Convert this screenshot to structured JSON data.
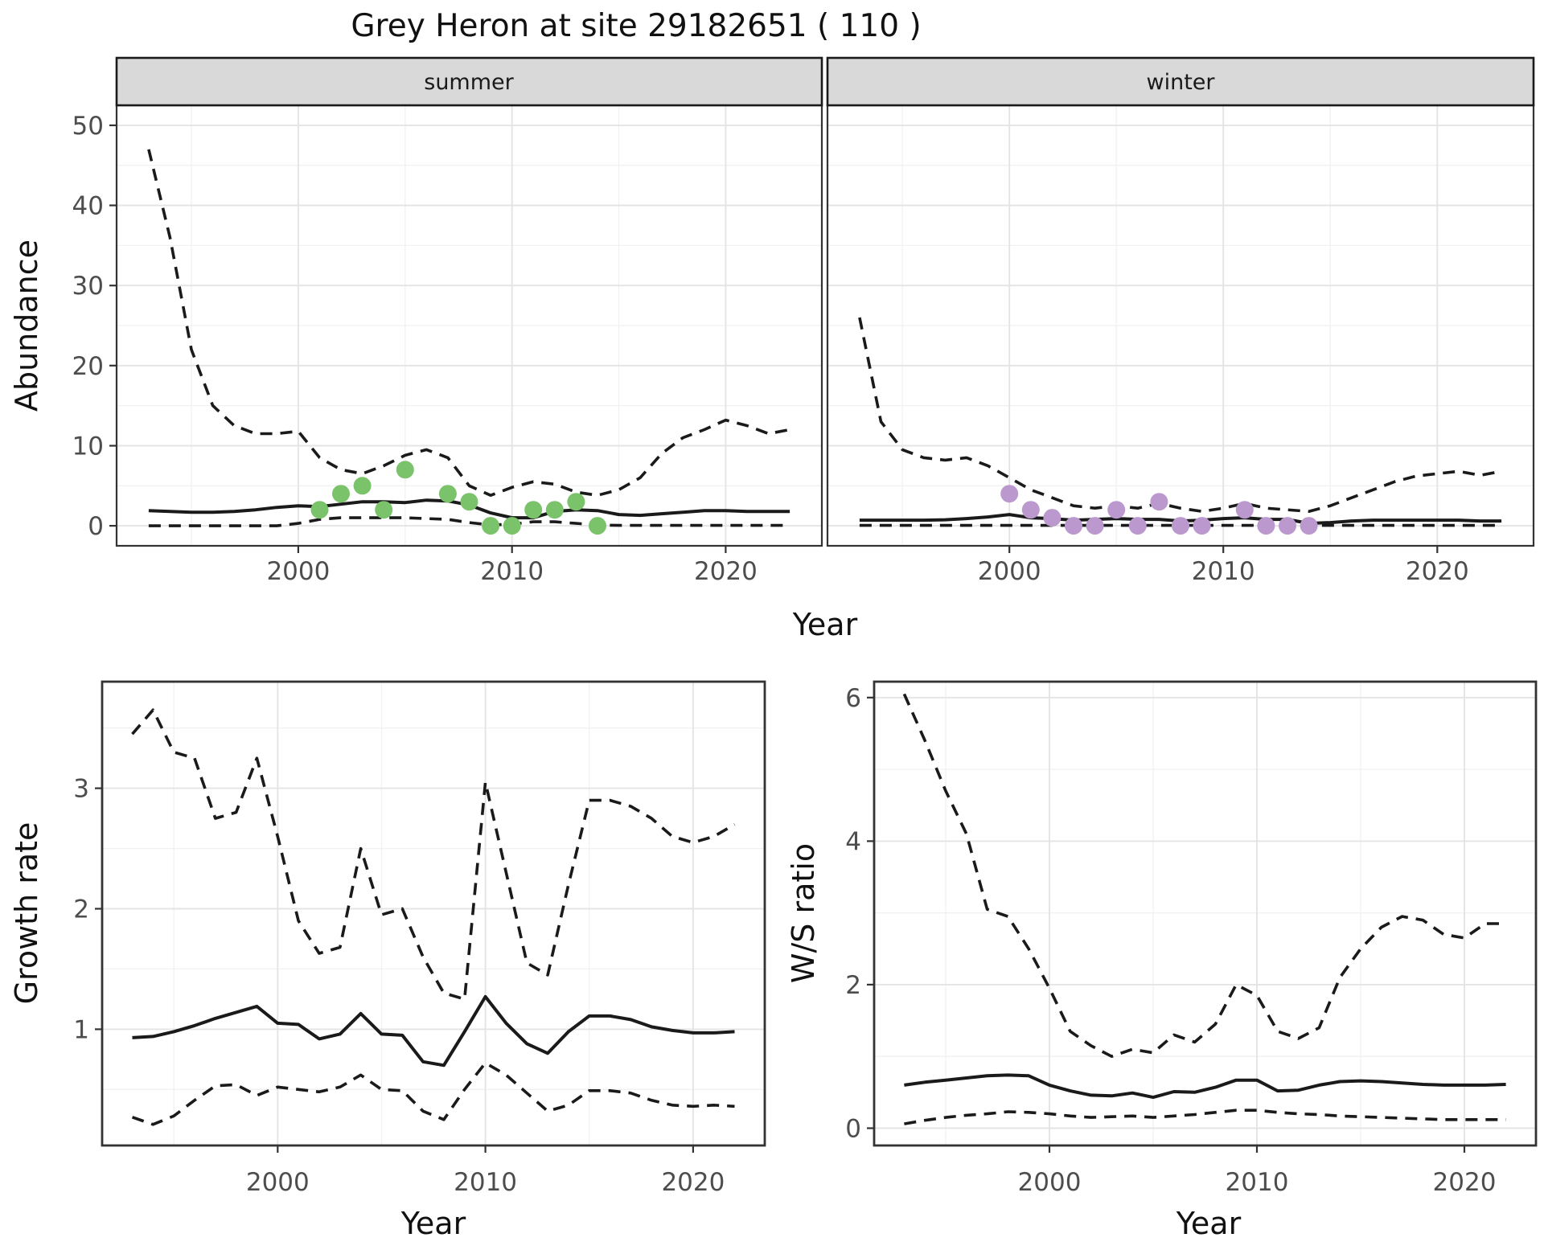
{
  "title": "Grey Heron at site 29182651 ( 110 )",
  "colors": {
    "summer_points": "#7ac36a",
    "winter_points": "#bb99ce",
    "line": "#1a1a1a",
    "strip_background": "#d9d9d9",
    "tick_label": "#4d4d4d",
    "gridline_major": "#e4e4e4",
    "gridline_minor": "#f1f1f1"
  },
  "chart_data": [
    {
      "type": "line",
      "facet": "summer",
      "xlabel": "Year",
      "ylabel": "Abundance",
      "xlim": [
        1991.5,
        2024.5
      ],
      "ylim": [
        -2.5,
        52.5
      ],
      "xticks": [
        2000,
        2010,
        2020
      ],
      "yticks": [
        0,
        10,
        20,
        30,
        40,
        50
      ],
      "x_minor": [
        1995,
        2005,
        2015
      ],
      "y_minor": [
        5,
        15,
        25,
        35,
        45
      ],
      "grid": true,
      "years": [
        1993,
        1994,
        1995,
        1996,
        1997,
        1998,
        1999,
        2000,
        2001,
        2002,
        2003,
        2004,
        2005,
        2006,
        2007,
        2008,
        2009,
        2010,
        2011,
        2012,
        2013,
        2014,
        2015,
        2016,
        2017,
        2018,
        2019,
        2020,
        2021,
        2022,
        2023
      ],
      "upper": [
        47,
        36,
        22,
        15,
        12.5,
        11.5,
        11.5,
        11.8,
        8.5,
        7,
        6.5,
        7.5,
        8.8,
        9.5,
        8.5,
        5,
        3.8,
        4.8,
        5.5,
        5.2,
        4.2,
        3.8,
        4.5,
        6,
        9,
        11,
        12,
        13.2,
        12.5,
        11.5,
        12
      ],
      "median": [
        1.9,
        1.8,
        1.7,
        1.7,
        1.8,
        2.0,
        2.3,
        2.5,
        2.4,
        2.7,
        3.0,
        3.0,
        2.9,
        3.2,
        3.1,
        2.6,
        1.6,
        1.0,
        1.0,
        1.8,
        2.0,
        1.9,
        1.4,
        1.3,
        1.5,
        1.7,
        1.9,
        1.9,
        1.8,
        1.8,
        1.8
      ],
      "lower": [
        0,
        0,
        0,
        0,
        0,
        0,
        0,
        0.3,
        0.8,
        1.0,
        1.0,
        1.0,
        1.0,
        0.9,
        0.8,
        0.4,
        0.1,
        0.2,
        0.5,
        0.5,
        0.3,
        0.1,
        0.05,
        0.05,
        0.05,
        0.05,
        0.05,
        0.05,
        0.05,
        0.05,
        0.05
      ],
      "points": {
        "color": "#7ac36a",
        "years": [
          2001,
          2002,
          2003,
          2004,
          2005,
          2007,
          2008,
          2009,
          2010,
          2011,
          2012,
          2013,
          2014
        ],
        "values": [
          2,
          4,
          5,
          2,
          7,
          4,
          3,
          0,
          0,
          2,
          2,
          3,
          0
        ]
      }
    },
    {
      "type": "line",
      "facet": "winter",
      "xlabel": "Year",
      "ylabel": "Abundance",
      "xlim": [
        1991.5,
        2024.5
      ],
      "ylim": [
        -2.5,
        52.5
      ],
      "xticks": [
        2000,
        2010,
        2020
      ],
      "yticks": [
        0,
        10,
        20,
        30,
        40,
        50
      ],
      "x_minor": [
        1995,
        2005,
        2015
      ],
      "y_minor": [
        5,
        15,
        25,
        35,
        45
      ],
      "grid": true,
      "years": [
        1993,
        1994,
        1995,
        1996,
        1997,
        1998,
        1999,
        2000,
        2001,
        2002,
        2003,
        2004,
        2005,
        2006,
        2007,
        2008,
        2009,
        2010,
        2011,
        2012,
        2013,
        2014,
        2015,
        2016,
        2017,
        2018,
        2019,
        2020,
        2021,
        2022,
        2023
      ],
      "upper": [
        26,
        13,
        9.5,
        8.5,
        8.2,
        8.5,
        7.5,
        6,
        4.5,
        3.5,
        2.5,
        2.2,
        2.5,
        2.2,
        2.8,
        2.2,
        1.8,
        2.2,
        2.8,
        2.2,
        2.0,
        1.8,
        2.5,
        3.5,
        4.5,
        5.5,
        6.2,
        6.5,
        6.8,
        6.3,
        6.8
      ],
      "median": [
        0.7,
        0.7,
        0.7,
        0.7,
        0.75,
        0.9,
        1.1,
        1.4,
        1.0,
        0.9,
        0.7,
        0.8,
        0.9,
        0.8,
        0.8,
        0.6,
        0.7,
        0.9,
        1.0,
        0.8,
        0.8,
        0.3,
        0.4,
        0.6,
        0.7,
        0.7,
        0.7,
        0.7,
        0.7,
        0.6,
        0.6
      ],
      "lower": [
        0.05,
        0.05,
        0.05,
        0.05,
        0.05,
        0.05,
        0.05,
        0.05,
        0.05,
        0.05,
        0.05,
        0.05,
        0.05,
        0.05,
        0.05,
        0.05,
        0.05,
        0.05,
        0.05,
        0.05,
        0.05,
        0.05,
        0.05,
        0.05,
        0.05,
        0.05,
        0.05,
        0.05,
        0.05,
        0.05,
        0.05
      ],
      "points": {
        "color": "#bb99ce",
        "years": [
          2000,
          2001,
          2002,
          2003,
          2004,
          2005,
          2006,
          2007,
          2008,
          2009,
          2011,
          2012,
          2013,
          2014
        ],
        "values": [
          4,
          2,
          1,
          0,
          0,
          2,
          0,
          3,
          0,
          0,
          2,
          0,
          0,
          0
        ]
      }
    },
    {
      "type": "line",
      "facet": "",
      "xlabel": "Year",
      "ylabel": "Growth rate",
      "xlim": [
        1991.55,
        2023.45
      ],
      "ylim": [
        0.035,
        3.885
      ],
      "xticks": [
        2000,
        2010,
        2020
      ],
      "yticks": [
        1,
        2,
        3
      ],
      "x_minor": [
        1995,
        2005,
        2015
      ],
      "y_minor": [
        0.5,
        1.5,
        2.5,
        3.5
      ],
      "grid": true,
      "years": [
        1993,
        1994,
        1995,
        1996,
        1997,
        1998,
        1999,
        2000,
        2001,
        2002,
        2003,
        2004,
        2005,
        2006,
        2007,
        2008,
        2009,
        2010,
        2011,
        2012,
        2013,
        2014,
        2015,
        2016,
        2017,
        2018,
        2019,
        2020,
        2021,
        2022
      ],
      "upper": [
        3.45,
        3.65,
        3.3,
        3.25,
        2.75,
        2.8,
        3.25,
        2.6,
        1.9,
        1.63,
        1.68,
        2.5,
        1.95,
        2.0,
        1.6,
        1.3,
        1.25,
        3.05,
        2.3,
        1.55,
        1.45,
        2.2,
        2.9,
        2.9,
        2.85,
        2.75,
        2.6,
        2.55,
        2.6,
        2.7
      ],
      "median": [
        0.93,
        0.94,
        0.98,
        1.03,
        1.09,
        1.14,
        1.19,
        1.05,
        1.04,
        0.92,
        0.96,
        1.13,
        0.96,
        0.95,
        0.73,
        0.7,
        0.98,
        1.27,
        1.05,
        0.88,
        0.8,
        0.98,
        1.11,
        1.11,
        1.08,
        1.02,
        0.99,
        0.97,
        0.97,
        0.98
      ],
      "lower": [
        0.27,
        0.21,
        0.28,
        0.41,
        0.53,
        0.54,
        0.45,
        0.52,
        0.5,
        0.48,
        0.52,
        0.62,
        0.5,
        0.49,
        0.32,
        0.25,
        0.5,
        0.72,
        0.62,
        0.47,
        0.32,
        0.37,
        0.49,
        0.49,
        0.47,
        0.41,
        0.37,
        0.36,
        0.37,
        0.36
      ]
    },
    {
      "type": "line",
      "facet": "",
      "xlabel": "Year",
      "ylabel": "W/S ratio",
      "xlim": [
        1991.55,
        2023.45
      ],
      "ylim": [
        -0.241,
        6.222
      ],
      "xticks": [
        2000,
        2010,
        2020
      ],
      "yticks": [
        0,
        2,
        4,
        6
      ],
      "x_minor": [
        1995,
        2005,
        2015
      ],
      "y_minor": [
        1,
        3,
        5
      ],
      "grid": true,
      "years": [
        1993,
        1994,
        1995,
        1996,
        1997,
        1998,
        1999,
        2000,
        2001,
        2002,
        2003,
        2004,
        2005,
        2006,
        2007,
        2008,
        2009,
        2010,
        2011,
        2012,
        2013,
        2014,
        2015,
        2016,
        2017,
        2018,
        2019,
        2020,
        2021,
        2022
      ],
      "upper": [
        6.05,
        5.4,
        4.7,
        4.1,
        3.05,
        2.95,
        2.5,
        1.95,
        1.35,
        1.15,
        1.0,
        1.1,
        1.05,
        1.3,
        1.2,
        1.45,
        2.0,
        1.85,
        1.35,
        1.25,
        1.4,
        2.1,
        2.5,
        2.8,
        2.95,
        2.9,
        2.7,
        2.65,
        2.85,
        2.85
      ],
      "median": [
        0.6,
        0.64,
        0.67,
        0.7,
        0.73,
        0.74,
        0.73,
        0.6,
        0.52,
        0.46,
        0.45,
        0.49,
        0.43,
        0.51,
        0.5,
        0.57,
        0.67,
        0.67,
        0.52,
        0.53,
        0.6,
        0.65,
        0.66,
        0.65,
        0.63,
        0.61,
        0.6,
        0.6,
        0.6,
        0.61
      ],
      "lower": [
        0.06,
        0.11,
        0.15,
        0.18,
        0.2,
        0.23,
        0.22,
        0.2,
        0.17,
        0.15,
        0.16,
        0.17,
        0.15,
        0.17,
        0.19,
        0.22,
        0.25,
        0.25,
        0.22,
        0.2,
        0.19,
        0.17,
        0.16,
        0.15,
        0.14,
        0.13,
        0.12,
        0.12,
        0.12,
        0.12
      ]
    }
  ]
}
